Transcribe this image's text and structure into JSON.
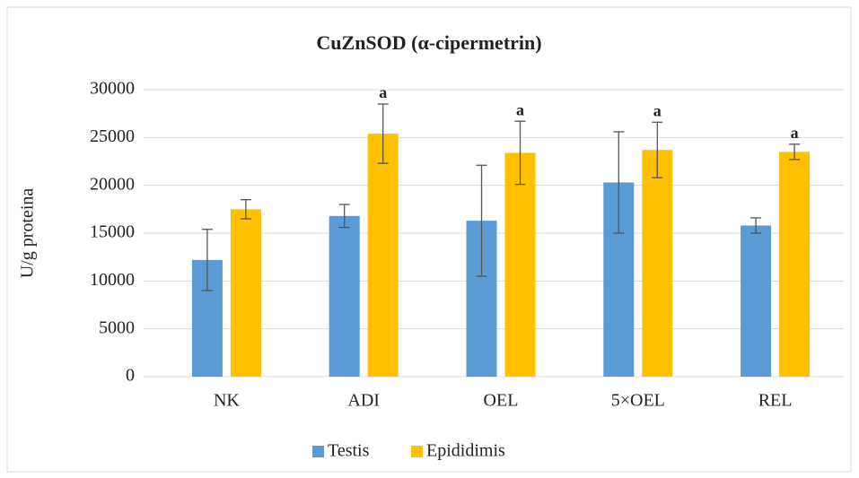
{
  "chart_data": {
    "type": "bar",
    "title": "CuZnSOD (α-cipermetrin)",
    "y_label": "U/g proteina",
    "categories": [
      "NK",
      "ADI",
      "OEL",
      "5×OEL",
      "REL"
    ],
    "series": [
      {
        "name": "Testis",
        "color": "#5b9bd5",
        "values": [
          12200,
          16800,
          16300,
          20300,
          15800
        ],
        "errors": [
          3200,
          1200,
          5800,
          5300,
          800
        ],
        "annotations": [
          null,
          null,
          null,
          null,
          null
        ]
      },
      {
        "name": "Epididimis",
        "color": "#ffc000",
        "values": [
          17500,
          25400,
          23400,
          23700,
          23500
        ],
        "errors": [
          1000,
          3100,
          3300,
          2900,
          800
        ],
        "annotations": [
          null,
          "a",
          "a",
          "a",
          "a"
        ]
      }
    ],
    "ylim": [
      0,
      30000
    ],
    "yticks": [
      0,
      5000,
      10000,
      15000,
      20000,
      25000,
      30000
    ],
    "grid": true,
    "legend": "bottom"
  }
}
